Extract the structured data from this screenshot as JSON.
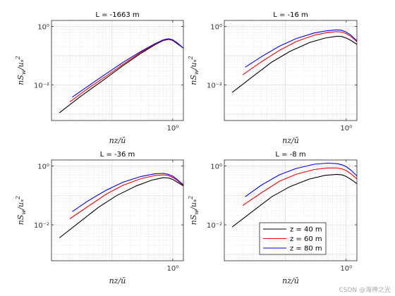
{
  "chart_data": [
    {
      "type": "line",
      "title": "L = -1663 m",
      "xlabel": "nz/ū",
      "ylabel": "nS_w/u_*^2",
      "xscale": "log",
      "yscale": "log",
      "xlim": [
        0.01,
        1.5
      ],
      "ylim": [
        0.0006,
        1.6
      ],
      "grid": true,
      "series": [
        {
          "name": "z = 40 m",
          "color": "#000000",
          "x": [
            0.0135,
            0.03,
            0.07,
            0.15,
            0.3,
            0.5,
            0.7,
            0.85,
            1.0,
            1.2,
            1.5
          ],
          "y": [
            0.0011,
            0.004,
            0.014,
            0.045,
            0.12,
            0.23,
            0.33,
            0.36,
            0.33,
            0.25,
            0.18
          ]
        },
        {
          "name": "z = 60 m",
          "color": "#ff0000",
          "x": [
            0.02,
            0.04,
            0.08,
            0.15,
            0.3,
            0.5,
            0.7,
            0.85,
            1.0,
            1.2,
            1.5
          ],
          "y": [
            0.0026,
            0.0075,
            0.02,
            0.05,
            0.13,
            0.24,
            0.34,
            0.37,
            0.34,
            0.26,
            0.18
          ]
        },
        {
          "name": "z = 80 m",
          "color": "#0000ff",
          "x": [
            0.022,
            0.04,
            0.08,
            0.15,
            0.3,
            0.5,
            0.7,
            0.85,
            1.0,
            1.2,
            1.5
          ],
          "y": [
            0.0038,
            0.009,
            0.024,
            0.058,
            0.14,
            0.25,
            0.35,
            0.38,
            0.35,
            0.27,
            0.18
          ]
        }
      ]
    },
    {
      "type": "line",
      "title": "L = -16 m",
      "xlabel": "nz/ū",
      "ylabel": "nS_w/u_*^2",
      "xscale": "log",
      "yscale": "log",
      "xlim": [
        0.01,
        1.5
      ],
      "ylim": [
        0.0006,
        1.6
      ],
      "grid": true,
      "series": [
        {
          "name": "z = 40 m",
          "color": "#000000",
          "x": [
            0.0135,
            0.03,
            0.06,
            0.12,
            0.25,
            0.45,
            0.7,
            0.85,
            1.0,
            1.2,
            1.5
          ],
          "y": [
            0.0055,
            0.02,
            0.06,
            0.14,
            0.28,
            0.4,
            0.46,
            0.45,
            0.4,
            0.33,
            0.24
          ]
        },
        {
          "name": "z = 60 m",
          "color": "#ff0000",
          "x": [
            0.02,
            0.04,
            0.08,
            0.15,
            0.3,
            0.5,
            0.7,
            0.85,
            1.0,
            1.2,
            1.5
          ],
          "y": [
            0.022,
            0.06,
            0.15,
            0.3,
            0.5,
            0.62,
            0.66,
            0.64,
            0.57,
            0.45,
            0.3
          ]
        },
        {
          "name": "z = 80 m",
          "color": "#0000ff",
          "x": [
            0.022,
            0.04,
            0.08,
            0.15,
            0.3,
            0.5,
            0.7,
            0.85,
            1.0,
            1.2,
            1.5
          ],
          "y": [
            0.04,
            0.09,
            0.21,
            0.38,
            0.6,
            0.72,
            0.76,
            0.73,
            0.64,
            0.5,
            0.32
          ]
        }
      ]
    },
    {
      "type": "line",
      "title": "L = -36 m",
      "xlabel": "nz/ū",
      "ylabel": "nS_w/u_*^2",
      "xscale": "log",
      "yscale": "log",
      "xlim": [
        0.01,
        1.5
      ],
      "ylim": [
        0.0006,
        1.6
      ],
      "grid": true,
      "series": [
        {
          "name": "z = 40 m",
          "color": "#000000",
          "x": [
            0.0135,
            0.03,
            0.06,
            0.12,
            0.25,
            0.45,
            0.7,
            0.85,
            1.0,
            1.2,
            1.5
          ],
          "y": [
            0.0036,
            0.013,
            0.04,
            0.1,
            0.21,
            0.33,
            0.4,
            0.39,
            0.35,
            0.28,
            0.21
          ]
        },
        {
          "name": "z = 60 m",
          "color": "#ff0000",
          "x": [
            0.02,
            0.04,
            0.08,
            0.15,
            0.3,
            0.5,
            0.7,
            0.85,
            1.0,
            1.2,
            1.5
          ],
          "y": [
            0.016,
            0.042,
            0.11,
            0.22,
            0.37,
            0.47,
            0.5,
            0.47,
            0.41,
            0.32,
            0.22
          ]
        },
        {
          "name": "z = 80 m",
          "color": "#0000ff",
          "x": [
            0.022,
            0.04,
            0.08,
            0.15,
            0.3,
            0.5,
            0.7,
            0.85,
            1.0,
            1.2,
            1.5
          ],
          "y": [
            0.028,
            0.065,
            0.15,
            0.28,
            0.44,
            0.54,
            0.56,
            0.52,
            0.45,
            0.34,
            0.23
          ]
        }
      ]
    },
    {
      "type": "line",
      "title": "L = -8 m",
      "xlabel": "nz/ū",
      "ylabel": "nS_w/u_*^2",
      "xscale": "log",
      "yscale": "log",
      "xlim": [
        0.01,
        1.5
      ],
      "ylim": [
        0.0006,
        1.6
      ],
      "grid": true,
      "legend": {
        "location": "lower-center",
        "entries": [
          "z = 40 m",
          "z = 60 m",
          "z = 80 m"
        ]
      },
      "series": [
        {
          "name": "z = 40 m",
          "color": "#000000",
          "x": [
            0.0135,
            0.03,
            0.06,
            0.12,
            0.25,
            0.45,
            0.7,
            0.85,
            1.0,
            1.2,
            1.5
          ],
          "y": [
            0.0085,
            0.03,
            0.09,
            0.2,
            0.36,
            0.48,
            0.52,
            0.5,
            0.44,
            0.35,
            0.25
          ]
        },
        {
          "name": "z = 60 m",
          "color": "#ff0000",
          "x": [
            0.02,
            0.04,
            0.08,
            0.15,
            0.3,
            0.5,
            0.7,
            0.85,
            1.0,
            1.2,
            1.5
          ],
          "y": [
            0.045,
            0.12,
            0.3,
            0.52,
            0.76,
            0.86,
            0.86,
            0.8,
            0.7,
            0.54,
            0.36
          ]
        },
        {
          "name": "z = 80 m",
          "color": "#0000ff",
          "x": [
            0.022,
            0.04,
            0.08,
            0.15,
            0.3,
            0.5,
            0.7,
            0.85,
            1.0,
            1.2,
            1.5
          ],
          "y": [
            0.09,
            0.22,
            0.5,
            0.82,
            1.15,
            1.25,
            1.2,
            1.1,
            0.95,
            0.72,
            0.46
          ]
        }
      ]
    }
  ],
  "tick_labels": {
    "x_major": "10⁰",
    "y_major": [
      "10⁰",
      "10⁻²"
    ]
  },
  "watermark": "CSDN @海神之光"
}
